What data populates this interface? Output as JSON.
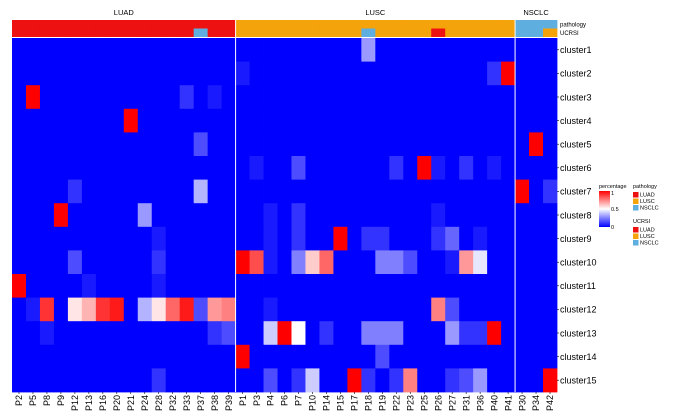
{
  "chart_data": {
    "type": "heatmap",
    "groups": [
      {
        "name": "LUAD",
        "count": 16
      },
      {
        "name": "LUSC",
        "count": 20
      },
      {
        "name": "NSCLC",
        "count": 3
      }
    ],
    "columns": [
      "P2",
      "P5",
      "P8",
      "P9",
      "P12",
      "P13",
      "P16",
      "P20",
      "P21",
      "P24",
      "P28",
      "P32",
      "P33",
      "P37",
      "P38",
      "P39",
      "P1",
      "P3",
      "P4",
      "P6",
      "P7",
      "P10",
      "P14",
      "P15",
      "P17",
      "P18",
      "P19",
      "P22",
      "P23",
      "P25",
      "P26",
      "P27",
      "P31",
      "P36",
      "P40",
      "P41",
      "P30",
      "P34",
      "P42"
    ],
    "rows": [
      "cluster1",
      "cluster2",
      "cluster3",
      "cluster4",
      "cluster5",
      "cluster6",
      "cluster7",
      "cluster8",
      "cluster9",
      "cluster10",
      "cluster11",
      "cluster12",
      "cluster13",
      "cluster14",
      "cluster15"
    ],
    "annotation_rows": [
      "pathology",
      "UCRSI"
    ],
    "pathology": [
      "LUAD",
      "LUAD",
      "LUAD",
      "LUAD",
      "LUAD",
      "LUAD",
      "LUAD",
      "LUAD",
      "LUAD",
      "LUAD",
      "LUAD",
      "LUAD",
      "LUAD",
      "LUAD",
      "LUAD",
      "LUAD",
      "LUSC",
      "LUSC",
      "LUSC",
      "LUSC",
      "LUSC",
      "LUSC",
      "LUSC",
      "LUSC",
      "LUSC",
      "LUSC",
      "LUSC",
      "LUSC",
      "LUSC",
      "LUSC",
      "LUSC",
      "LUSC",
      "LUSC",
      "LUSC",
      "LUSC",
      "LUSC",
      "NSCLC",
      "NSCLC",
      "NSCLC"
    ],
    "ucrsi": [
      "LUAD",
      "LUAD",
      "LUAD",
      "LUAD",
      "LUAD",
      "LUAD",
      "LUAD",
      "LUAD",
      "LUAD",
      "LUAD",
      "LUAD",
      "LUAD",
      "LUAD",
      "NSCLC",
      "LUAD",
      "LUAD",
      "LUSC",
      "LUSC",
      "LUSC",
      "LUSC",
      "LUSC",
      "LUSC",
      "LUSC",
      "LUSC",
      "LUSC",
      "NSCLC",
      "LUSC",
      "LUSC",
      "LUSC",
      "LUSC",
      "LUAD",
      "LUSC",
      "LUSC",
      "LUSC",
      "LUSC",
      "LUSC",
      "NSCLC",
      "NSCLC",
      "LUSC"
    ],
    "values": [
      [
        0,
        0,
        0,
        0,
        0,
        0,
        0,
        0,
        0,
        0,
        0,
        0,
        0,
        0,
        0,
        0,
        0,
        0,
        0,
        0,
        0,
        0,
        0,
        0,
        0,
        0.3,
        0,
        0,
        0,
        0,
        0,
        0,
        0,
        0,
        0,
        0,
        0,
        0,
        0
      ],
      [
        0,
        0,
        0,
        0,
        0,
        0,
        0,
        0,
        0,
        0,
        0,
        0,
        0,
        0,
        0,
        0,
        0.05,
        0,
        0,
        0,
        0,
        0,
        0,
        0,
        0,
        0,
        0,
        0,
        0,
        0,
        0,
        0,
        0,
        0,
        0.1,
        1,
        0,
        0,
        0
      ],
      [
        0,
        1,
        0,
        0,
        0,
        0,
        0,
        0,
        0,
        0,
        0,
        0,
        0.1,
        0,
        0.05,
        0,
        0,
        0,
        0,
        0,
        0,
        0,
        0,
        0,
        0,
        0,
        0,
        0,
        0,
        0,
        0,
        0,
        0,
        0,
        0,
        0,
        0,
        0,
        0
      ],
      [
        0,
        0,
        0,
        0,
        0,
        0,
        0,
        0,
        1,
        0,
        0,
        0,
        0,
        0,
        0,
        0,
        0,
        0,
        0,
        0,
        0,
        0,
        0,
        0,
        0,
        0,
        0,
        0,
        0,
        0,
        0,
        0,
        0,
        0,
        0,
        0,
        0,
        0,
        0
      ],
      [
        0,
        0,
        0,
        0,
        0,
        0,
        0,
        0,
        0,
        0,
        0,
        0,
        0,
        0.15,
        0,
        0,
        0,
        0,
        0,
        0,
        0,
        0,
        0,
        0,
        0,
        0,
        0,
        0,
        0,
        0,
        0,
        0,
        0,
        0,
        0,
        0,
        0,
        1,
        0
      ],
      [
        0,
        0,
        0,
        0,
        0,
        0,
        0,
        0,
        0,
        0,
        0,
        0,
        0,
        0,
        0,
        0,
        0,
        0.05,
        0,
        0,
        0.15,
        0,
        0,
        0,
        0,
        0,
        0,
        0.1,
        0,
        1,
        0.05,
        0,
        0.1,
        0,
        0.05,
        0,
        0,
        0,
        0
      ],
      [
        0,
        0,
        0,
        0,
        0.1,
        0,
        0,
        0,
        0,
        0,
        0,
        0,
        0,
        0.35,
        0,
        0,
        0,
        0,
        0,
        0,
        0,
        0,
        0,
        0,
        0,
        0,
        0,
        0,
        0,
        0,
        0,
        0,
        0,
        0,
        0,
        0,
        1,
        0,
        0.1
      ],
      [
        0,
        0,
        0,
        1,
        0,
        0,
        0,
        0,
        0,
        0.3,
        0,
        0,
        0,
        0,
        0,
        0,
        0,
        0,
        0.05,
        0,
        0.1,
        0,
        0,
        0,
        0,
        0,
        0,
        0,
        0,
        0,
        0.05,
        0,
        0,
        0,
        0,
        0,
        0,
        0,
        0
      ],
      [
        0,
        0,
        0,
        0,
        0,
        0,
        0,
        0,
        0,
        0,
        0.05,
        0,
        0,
        0,
        0,
        0,
        0,
        0,
        0.05,
        0,
        0.1,
        0,
        0,
        1,
        0,
        0.1,
        0.1,
        0,
        0,
        0,
        0.1,
        0.2,
        0,
        0.05,
        0,
        0,
        0,
        0,
        0
      ],
      [
        0,
        0,
        0,
        0,
        0.15,
        0,
        0,
        0,
        0,
        0,
        0.1,
        0,
        0,
        0,
        0,
        0,
        1,
        0.85,
        0.05,
        0,
        0.25,
        0.6,
        0.8,
        0,
        0,
        0,
        0.25,
        0.25,
        0.15,
        0,
        0,
        0.05,
        0.7,
        0.45,
        0,
        0,
        0,
        0,
        0
      ],
      [
        1,
        0,
        0,
        0,
        0,
        0.05,
        0,
        0,
        0,
        0,
        0.05,
        0,
        0,
        0,
        0,
        0,
        0,
        0,
        0,
        0,
        0,
        0,
        0,
        0,
        0,
        0,
        0,
        0,
        0,
        0,
        0,
        0,
        0,
        0,
        0,
        0,
        0,
        0,
        0
      ],
      [
        0,
        0.05,
        0.9,
        0,
        0.55,
        0.65,
        0.9,
        0.95,
        0,
        0.35,
        0.55,
        0.8,
        0.95,
        0.15,
        0.7,
        0.75,
        0,
        0,
        0.05,
        0,
        0,
        0,
        0,
        0,
        0,
        0,
        0,
        0,
        0,
        0,
        0.75,
        0.15,
        0,
        0,
        0,
        0,
        0,
        0,
        0
      ],
      [
        0,
        0,
        0.05,
        0,
        0,
        0,
        0,
        0,
        0,
        0,
        0,
        0,
        0,
        0,
        0.1,
        0.15,
        0,
        0,
        0.4,
        1,
        0.5,
        0,
        0.1,
        0,
        0,
        0.25,
        0.25,
        0.25,
        0,
        0,
        0,
        0.3,
        0.1,
        0.1,
        1,
        0,
        0,
        0,
        0
      ],
      [
        0,
        0,
        0,
        0,
        0,
        0,
        0,
        0,
        0,
        0,
        0,
        0,
        0,
        0,
        0,
        0,
        1,
        0,
        0,
        0,
        0,
        0,
        0,
        0,
        0,
        0,
        0.15,
        0,
        0,
        0,
        0,
        0,
        0,
        0,
        0,
        0,
        0,
        0,
        0
      ],
      [
        0,
        0,
        0,
        0,
        0,
        0,
        0,
        0,
        0,
        0,
        0.1,
        0,
        0,
        0,
        0,
        0,
        0,
        0,
        0.15,
        0,
        0.1,
        0.4,
        0,
        0,
        1,
        0.1,
        0,
        0.1,
        0.75,
        0,
        0,
        0.1,
        0.15,
        0.3,
        0,
        0,
        0,
        0,
        1
      ]
    ],
    "colors": {
      "low": "#0000ff",
      "mid": "#ffffff",
      "high": "#ff0000",
      "LUAD": "#ee1111",
      "LUSC": "#f5a30a",
      "NSCLC": "#5eaee0"
    },
    "legend": {
      "percentage_title": "percentage",
      "percentage_ticks": [
        "1",
        "0.5",
        "0"
      ],
      "pathology_title": "pathology",
      "ucrsi_title": "UCRSI",
      "entries": [
        "LUAD",
        "LUSC",
        "NSCLC"
      ]
    }
  }
}
